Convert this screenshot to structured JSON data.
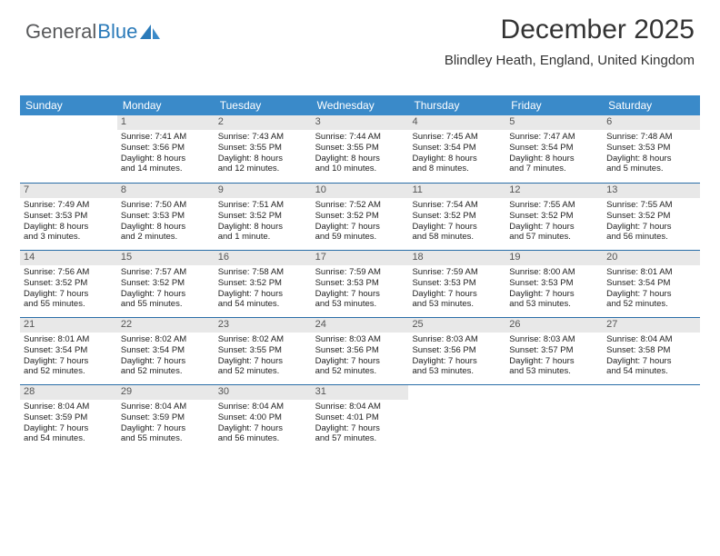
{
  "logo": {
    "part1": "General",
    "part2": "Blue"
  },
  "title": "December 2025",
  "location": "Blindley Heath, England, United Kingdom",
  "colors": {
    "header_bg": "#3a8ac9",
    "header_text": "#ffffff",
    "daynum_bg": "#e8e8e8",
    "week_border": "#2a6ea8",
    "logo_gray": "#58595b",
    "logo_blue": "#2a7ab9",
    "background": "#ffffff",
    "text": "#222222"
  },
  "typography": {
    "title_fontsize": 30,
    "location_fontsize": 15,
    "dayheader_fontsize": 12,
    "daynum_fontsize": 11,
    "cell_fontsize": 9.5
  },
  "day_names": [
    "Sunday",
    "Monday",
    "Tuesday",
    "Wednesday",
    "Thursday",
    "Friday",
    "Saturday"
  ],
  "weeks": [
    [
      {
        "n": "",
        "empty": true
      },
      {
        "n": "1",
        "sr": "Sunrise: 7:41 AM",
        "ss": "Sunset: 3:56 PM",
        "d1": "Daylight: 8 hours",
        "d2": "and 14 minutes."
      },
      {
        "n": "2",
        "sr": "Sunrise: 7:43 AM",
        "ss": "Sunset: 3:55 PM",
        "d1": "Daylight: 8 hours",
        "d2": "and 12 minutes."
      },
      {
        "n": "3",
        "sr": "Sunrise: 7:44 AM",
        "ss": "Sunset: 3:55 PM",
        "d1": "Daylight: 8 hours",
        "d2": "and 10 minutes."
      },
      {
        "n": "4",
        "sr": "Sunrise: 7:45 AM",
        "ss": "Sunset: 3:54 PM",
        "d1": "Daylight: 8 hours",
        "d2": "and 8 minutes."
      },
      {
        "n": "5",
        "sr": "Sunrise: 7:47 AM",
        "ss": "Sunset: 3:54 PM",
        "d1": "Daylight: 8 hours",
        "d2": "and 7 minutes."
      },
      {
        "n": "6",
        "sr": "Sunrise: 7:48 AM",
        "ss": "Sunset: 3:53 PM",
        "d1": "Daylight: 8 hours",
        "d2": "and 5 minutes."
      }
    ],
    [
      {
        "n": "7",
        "sr": "Sunrise: 7:49 AM",
        "ss": "Sunset: 3:53 PM",
        "d1": "Daylight: 8 hours",
        "d2": "and 3 minutes."
      },
      {
        "n": "8",
        "sr": "Sunrise: 7:50 AM",
        "ss": "Sunset: 3:53 PM",
        "d1": "Daylight: 8 hours",
        "d2": "and 2 minutes."
      },
      {
        "n": "9",
        "sr": "Sunrise: 7:51 AM",
        "ss": "Sunset: 3:52 PM",
        "d1": "Daylight: 8 hours",
        "d2": "and 1 minute."
      },
      {
        "n": "10",
        "sr": "Sunrise: 7:52 AM",
        "ss": "Sunset: 3:52 PM",
        "d1": "Daylight: 7 hours",
        "d2": "and 59 minutes."
      },
      {
        "n": "11",
        "sr": "Sunrise: 7:54 AM",
        "ss": "Sunset: 3:52 PM",
        "d1": "Daylight: 7 hours",
        "d2": "and 58 minutes."
      },
      {
        "n": "12",
        "sr": "Sunrise: 7:55 AM",
        "ss": "Sunset: 3:52 PM",
        "d1": "Daylight: 7 hours",
        "d2": "and 57 minutes."
      },
      {
        "n": "13",
        "sr": "Sunrise: 7:55 AM",
        "ss": "Sunset: 3:52 PM",
        "d1": "Daylight: 7 hours",
        "d2": "and 56 minutes."
      }
    ],
    [
      {
        "n": "14",
        "sr": "Sunrise: 7:56 AM",
        "ss": "Sunset: 3:52 PM",
        "d1": "Daylight: 7 hours",
        "d2": "and 55 minutes."
      },
      {
        "n": "15",
        "sr": "Sunrise: 7:57 AM",
        "ss": "Sunset: 3:52 PM",
        "d1": "Daylight: 7 hours",
        "d2": "and 55 minutes."
      },
      {
        "n": "16",
        "sr": "Sunrise: 7:58 AM",
        "ss": "Sunset: 3:52 PM",
        "d1": "Daylight: 7 hours",
        "d2": "and 54 minutes."
      },
      {
        "n": "17",
        "sr": "Sunrise: 7:59 AM",
        "ss": "Sunset: 3:53 PM",
        "d1": "Daylight: 7 hours",
        "d2": "and 53 minutes."
      },
      {
        "n": "18",
        "sr": "Sunrise: 7:59 AM",
        "ss": "Sunset: 3:53 PM",
        "d1": "Daylight: 7 hours",
        "d2": "and 53 minutes."
      },
      {
        "n": "19",
        "sr": "Sunrise: 8:00 AM",
        "ss": "Sunset: 3:53 PM",
        "d1": "Daylight: 7 hours",
        "d2": "and 53 minutes."
      },
      {
        "n": "20",
        "sr": "Sunrise: 8:01 AM",
        "ss": "Sunset: 3:54 PM",
        "d1": "Daylight: 7 hours",
        "d2": "and 52 minutes."
      }
    ],
    [
      {
        "n": "21",
        "sr": "Sunrise: 8:01 AM",
        "ss": "Sunset: 3:54 PM",
        "d1": "Daylight: 7 hours",
        "d2": "and 52 minutes."
      },
      {
        "n": "22",
        "sr": "Sunrise: 8:02 AM",
        "ss": "Sunset: 3:54 PM",
        "d1": "Daylight: 7 hours",
        "d2": "and 52 minutes."
      },
      {
        "n": "23",
        "sr": "Sunrise: 8:02 AM",
        "ss": "Sunset: 3:55 PM",
        "d1": "Daylight: 7 hours",
        "d2": "and 52 minutes."
      },
      {
        "n": "24",
        "sr": "Sunrise: 8:03 AM",
        "ss": "Sunset: 3:56 PM",
        "d1": "Daylight: 7 hours",
        "d2": "and 52 minutes."
      },
      {
        "n": "25",
        "sr": "Sunrise: 8:03 AM",
        "ss": "Sunset: 3:56 PM",
        "d1": "Daylight: 7 hours",
        "d2": "and 53 minutes."
      },
      {
        "n": "26",
        "sr": "Sunrise: 8:03 AM",
        "ss": "Sunset: 3:57 PM",
        "d1": "Daylight: 7 hours",
        "d2": "and 53 minutes."
      },
      {
        "n": "27",
        "sr": "Sunrise: 8:04 AM",
        "ss": "Sunset: 3:58 PM",
        "d1": "Daylight: 7 hours",
        "d2": "and 54 minutes."
      }
    ],
    [
      {
        "n": "28",
        "sr": "Sunrise: 8:04 AM",
        "ss": "Sunset: 3:59 PM",
        "d1": "Daylight: 7 hours",
        "d2": "and 54 minutes."
      },
      {
        "n": "29",
        "sr": "Sunrise: 8:04 AM",
        "ss": "Sunset: 3:59 PM",
        "d1": "Daylight: 7 hours",
        "d2": "and 55 minutes."
      },
      {
        "n": "30",
        "sr": "Sunrise: 8:04 AM",
        "ss": "Sunset: 4:00 PM",
        "d1": "Daylight: 7 hours",
        "d2": "and 56 minutes."
      },
      {
        "n": "31",
        "sr": "Sunrise: 8:04 AM",
        "ss": "Sunset: 4:01 PM",
        "d1": "Daylight: 7 hours",
        "d2": "and 57 minutes."
      },
      {
        "n": "",
        "empty": true
      },
      {
        "n": "",
        "empty": true
      },
      {
        "n": "",
        "empty": true
      }
    ]
  ]
}
